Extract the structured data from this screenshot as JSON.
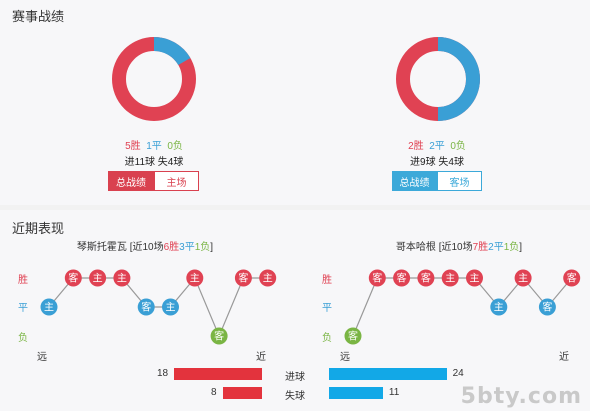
{
  "section1": {
    "title": "赛事战绩",
    "left": {
      "wins": "5胜",
      "draws": "1平",
      "losses": "0负",
      "goals": "进11球 失4球",
      "tab_active": "总战绩",
      "tab_other": "主场"
    },
    "right": {
      "wins": "2胜",
      "draws": "2平",
      "losses": "0负",
      "goals": "进9球 失4球",
      "tab_active": "总战绩",
      "tab_other": "客场"
    }
  },
  "section2": {
    "title": "近期表现",
    "left": {
      "team": "琴斯托霍瓦",
      "summary_prefix": " [近10场",
      "wins": "6胜",
      "draws": "3平",
      "losses": "1负",
      "summary_suffix": "]",
      "results": [
        "平",
        "胜",
        "胜",
        "胜",
        "平",
        "平",
        "胜",
        "负",
        "胜",
        "胜"
      ],
      "venues": [
        "主",
        "客",
        "主",
        "主",
        "客",
        "主",
        "主",
        "客",
        "客",
        "主"
      ]
    },
    "right": {
      "team": "哥本哈根",
      "summary_prefix": " [近10场",
      "wins": "7胜",
      "draws": "2平",
      "losses": "1负",
      "summary_suffix": "]",
      "results": [
        "负",
        "胜",
        "胜",
        "胜",
        "胜",
        "胜",
        "平",
        "胜",
        "平",
        "胜"
      ],
      "venues": [
        "客",
        "客",
        "客",
        "客",
        "主",
        "主",
        "主",
        "主",
        "客",
        "客"
      ]
    },
    "axis_win": "胜",
    "axis_draw": "平",
    "axis_loss": "负",
    "far": "远",
    "near": "近"
  },
  "goals_compare": {
    "scored_label": "进球",
    "conceded_label": "失球",
    "left_scored": 18,
    "left_conceded": 8,
    "right_scored": 24,
    "right_conceded": 11
  },
  "colors": {
    "win": "#e04253",
    "draw": "#3a9fd5",
    "loss": "#7ab544",
    "bar_left": "#e3333d",
    "bar_right": "#12a8e7"
  },
  "watermark": "5bty.com"
}
